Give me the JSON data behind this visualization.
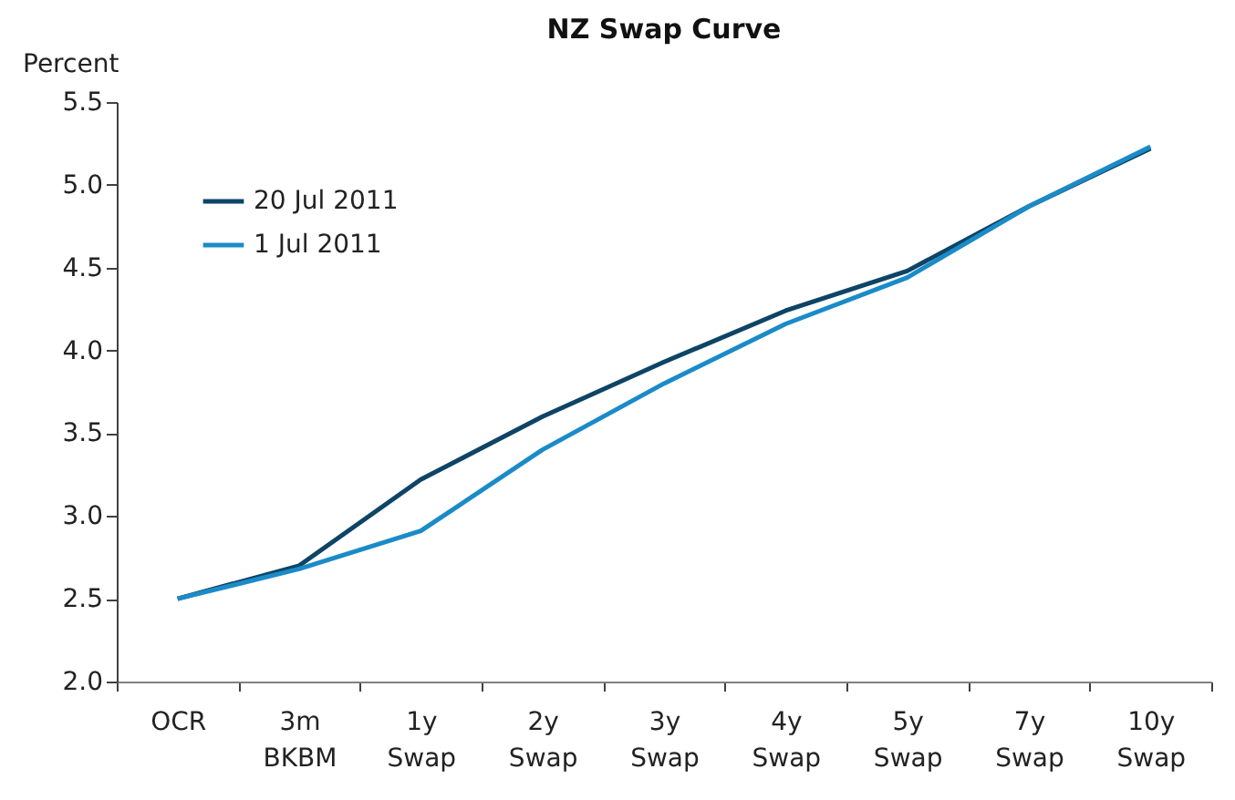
{
  "chart_data": {
    "type": "line",
    "title": "NZ Swap Curve",
    "ylabel": "Percent",
    "categories": [
      "OCR",
      "3m BKBM",
      "1y Swap",
      "2y Swap",
      "3y Swap",
      "4y Swap",
      "5y Swap",
      "7y Swap",
      "10y Swap"
    ],
    "series": [
      {
        "name": "20 Jul 2011",
        "color": "#0e4466",
        "values": [
          2.5,
          2.7,
          3.22,
          3.6,
          3.93,
          4.24,
          4.48,
          4.87,
          5.22
        ]
      },
      {
        "name": "1 Jul 2011",
        "color": "#1b8bc8",
        "values": [
          2.5,
          2.68,
          2.91,
          3.4,
          3.8,
          4.16,
          4.44,
          4.87,
          5.23
        ]
      }
    ],
    "ylim": [
      2.0,
      5.5
    ],
    "yticks": [
      {
        "value": 2,
        "label": "2.0"
      },
      {
        "value": 2.5,
        "label": "2.5"
      },
      {
        "value": 3,
        "label": "3.0"
      },
      {
        "value": 3.5,
        "label": "3.5"
      },
      {
        "value": 4,
        "label": "4.0"
      },
      {
        "value": 4.5,
        "label": "4.5"
      },
      {
        "value": 5,
        "label": "5.0"
      },
      {
        "value": 5.5,
        "label": "5.5"
      }
    ],
    "legend": "top left",
    "line_style": "solid"
  }
}
